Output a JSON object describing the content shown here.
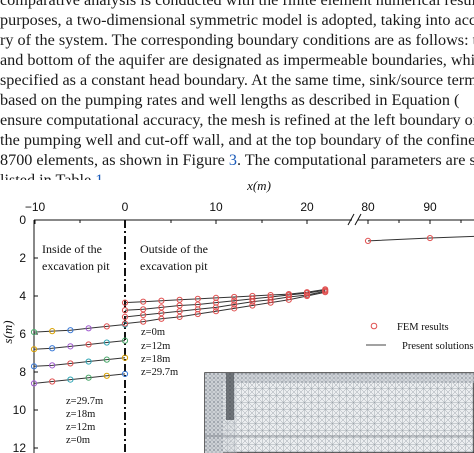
{
  "paper": {
    "lines": [
      "comparative analysis is conducted with the finite element numerical results",
      "purposes, a two-dimensional symmetric model is adopted, taking into accou",
      "ry of the system. The corresponding boundary conditions are as follows: th",
      "and bottom of the aquifer are designated as impermeable boundaries, while t",
      "specified as a constant head boundary. At the same time, sink/source terms a",
      "based on the pumping rates and well lengths as described in Equation (",
      "ensure computational accuracy, the mesh is refined at the left boundary of th",
      "the pumping well and cut-off wall, and at the top boundary of the confine",
      "8700 elements, as shown in Figure ",
      ". The computational parameters are su",
      "listed in Table ",
      "."
    ],
    "figure_ref": "3",
    "table_ref": "1"
  },
  "chart_data": {
    "type": "line",
    "xlabel": "x(m)",
    "ylabel": "s(m)",
    "x_ticks": [
      "−10",
      "0",
      "10",
      "20",
      "80",
      "90"
    ],
    "y_ticks": [
      "0",
      "2",
      "4",
      "6",
      "8",
      "10",
      "12"
    ],
    "ylim": [
      0,
      12
    ],
    "y_inverted": true,
    "axis_break": true,
    "legend": [
      "FEM results",
      "Present solutions"
    ],
    "annotations": {
      "inside": [
        "Inside of the",
        "excavation pit"
      ],
      "outside": [
        "Outside of the",
        "excavation pit"
      ],
      "outside_z": [
        "z=0m",
        "z=12m",
        "z=18m",
        "z=29.7m"
      ],
      "inside_z": [
        "z=29.7m",
        "z=18m",
        "z=12m",
        "z=0m"
      ]
    },
    "series_inside": [
      {
        "name": "z=0m",
        "x": [
          -10,
          -8,
          -6,
          -4,
          -2,
          0
        ],
        "y": [
          5.9,
          5.85,
          5.8,
          5.7,
          5.6,
          5.5
        ]
      },
      {
        "name": "z=12m",
        "x": [
          -10,
          -8,
          -6,
          -4,
          -2,
          0
        ],
        "y": [
          6.8,
          6.75,
          6.65,
          6.55,
          6.45,
          6.35
        ]
      },
      {
        "name": "z=18m",
        "x": [
          -10,
          -8,
          -6,
          -4,
          -2,
          0
        ],
        "y": [
          7.7,
          7.65,
          7.55,
          7.45,
          7.35,
          7.25
        ]
      },
      {
        "name": "z=29.7m",
        "x": [
          -10,
          -8,
          -6,
          -4,
          -2,
          0
        ],
        "y": [
          8.6,
          8.5,
          8.4,
          8.3,
          8.2,
          8.1
        ]
      }
    ],
    "series_outside": [
      {
        "name": "z=0m",
        "x": [
          0,
          2,
          4,
          6,
          8,
          10,
          12,
          14,
          16,
          18,
          20,
          22
        ],
        "y": [
          4.35,
          4.3,
          4.25,
          4.2,
          4.15,
          4.1,
          4.05,
          4.0,
          3.95,
          3.9,
          3.8,
          3.65
        ]
      },
      {
        "name": "z=12m",
        "x": [
          0,
          2,
          4,
          6,
          8,
          10,
          12,
          14,
          16,
          18,
          20,
          22
        ],
        "y": [
          4.75,
          4.7,
          4.6,
          4.5,
          4.45,
          4.35,
          4.25,
          4.15,
          4.05,
          3.95,
          3.85,
          3.7
        ]
      },
      {
        "name": "z=18m",
        "x": [
          0,
          2,
          4,
          6,
          8,
          10,
          12,
          14,
          16,
          18,
          20,
          22
        ],
        "y": [
          5.1,
          5.0,
          4.9,
          4.8,
          4.7,
          4.6,
          4.45,
          4.3,
          4.2,
          4.05,
          3.95,
          3.75
        ]
      },
      {
        "name": "z=29.7m",
        "x": [
          0,
          2,
          4,
          6,
          8,
          10,
          12,
          14,
          16,
          18,
          20,
          22
        ],
        "y": [
          5.45,
          5.35,
          5.2,
          5.1,
          4.95,
          4.8,
          4.65,
          4.5,
          4.35,
          4.2,
          4.0,
          3.8
        ]
      }
    ],
    "series_far": {
      "x": [
        80,
        90,
        98
      ],
      "y": [
        1.1,
        0.95,
        0.85
      ]
    }
  }
}
